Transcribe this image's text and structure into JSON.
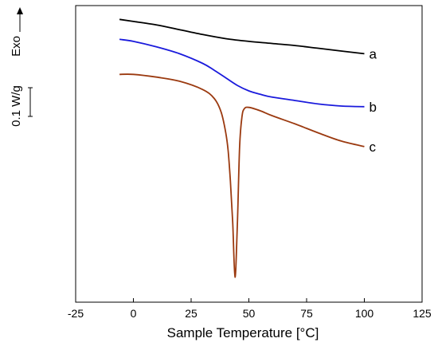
{
  "chart_data": {
    "type": "line",
    "xlabel": "Sample Temperature [°C]",
    "x_ticks": [
      -25,
      0,
      25,
      50,
      75,
      100,
      125
    ],
    "xlim": [
      -25,
      125
    ],
    "y_axis_ticks_shown": false,
    "scale_bar_label": "0.1 W/g",
    "exo_label": "Exo",
    "exo_direction": "up",
    "grid": false,
    "series": [
      {
        "name": "a",
        "color": "#000000",
        "x": [
          -6,
          0,
          10,
          20,
          30,
          40,
          50,
          60,
          70,
          80,
          90,
          100
        ],
        "y": [
          0.8,
          0.77,
          0.72,
          0.65,
          0.58,
          0.52,
          0.48,
          0.45,
          0.42,
          0.38,
          0.34,
          0.3
        ]
      },
      {
        "name": "b",
        "color": "#1a1adc",
        "x": [
          -6,
          0,
          10,
          20,
          30,
          35,
          40,
          45,
          50,
          55,
          60,
          70,
          80,
          90,
          100
        ],
        "y": [
          0.51,
          0.48,
          0.4,
          0.3,
          0.16,
          0.06,
          -0.05,
          -0.16,
          -0.24,
          -0.29,
          -0.33,
          -0.38,
          -0.43,
          -0.46,
          -0.47
        ]
      },
      {
        "name": "c",
        "color": "#9b3a10",
        "x": [
          -6,
          0,
          10,
          20,
          30,
          35,
          38,
          40,
          41,
          42,
          43,
          44,
          45,
          46,
          47,
          48,
          50,
          55,
          60,
          70,
          80,
          90,
          100
        ],
        "y": [
          0,
          0,
          -0.04,
          -0.1,
          -0.22,
          -0.35,
          -0.55,
          -0.85,
          -1.1,
          -1.55,
          -2.15,
          -2.95,
          -2.2,
          -1.05,
          -0.62,
          -0.5,
          -0.48,
          -0.53,
          -0.6,
          -0.72,
          -0.85,
          -0.97,
          -1.05
        ]
      }
    ]
  }
}
